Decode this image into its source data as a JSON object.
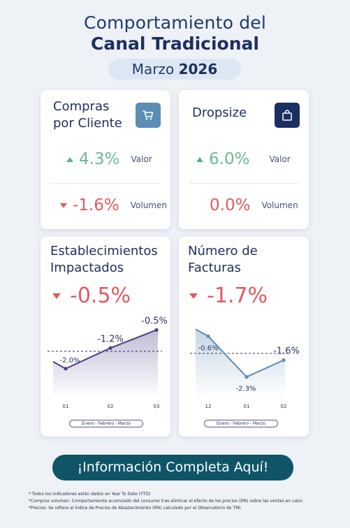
{
  "header": {
    "title_line1": "Comportamiento del",
    "title_line2": "Canal Tradicional",
    "month": "Marzo",
    "year": "2026"
  },
  "cards": {
    "compras": {
      "title_line1": "Compras",
      "title_line2": "por Cliente",
      "icon": "shopping-cart-icon",
      "valor": "4.3%",
      "valor_label": "Valor",
      "volumen": "-1.6%",
      "volumen_label": "Volumen"
    },
    "dropsize": {
      "title": "Dropsize",
      "icon": "shopping-bag-icon",
      "valor": "6.0%",
      "valor_label": "Valor",
      "volumen": "0.0%",
      "volumen_label": "Volumen"
    },
    "establecimientos": {
      "title_line1": "Establecimientos",
      "title_line2": "Impactados",
      "value": "-0.5%",
      "period": "Enero - Febrero - Marzo"
    },
    "facturas": {
      "title_line1": "Número de",
      "title_line2": "Facturas",
      "value": "-1.7%",
      "period": "Enero - Febrero - Marzo"
    }
  },
  "chart_data": [
    {
      "type": "line",
      "categories": [
        "01",
        "02",
        "03"
      ],
      "series": [
        {
          "values": [
            -2.0,
            -1.2,
            -0.5
          ]
        }
      ],
      "data_labels": [
        "-2.0%",
        "-1.2%",
        "-0.5%"
      ],
      "color": "#4a3f86"
    },
    {
      "type": "line",
      "categories": [
        "12",
        "01",
        "02"
      ],
      "series": [
        {
          "values": [
            -0.6,
            -2.3,
            -1.6
          ]
        }
      ],
      "data_labels": [
        "-0.6%",
        "-2.3%",
        "-1.6%"
      ],
      "color": "#5b8db5"
    }
  ],
  "cta": {
    "label": "¡Información Completa Aquí!"
  },
  "footnotes": [
    "* Todos los indicadores están dados en Year To Date (YTD)",
    "*Compras volumen: Comportamiento acumulado del consumo tras eliminar el efecto de los precios (IPA) sobre las ventas en valor.",
    "*Precios: Se refiere al Índice de Precios de Abastecimiento (IPA) calculado por el Observatorio de TMI."
  ],
  "colors": {
    "positive": "#6aba96",
    "negative": "#e25a5f",
    "cta": "#0f5567",
    "icon_cart": "#5b8db5",
    "icon_bag": "#1c2f62"
  }
}
